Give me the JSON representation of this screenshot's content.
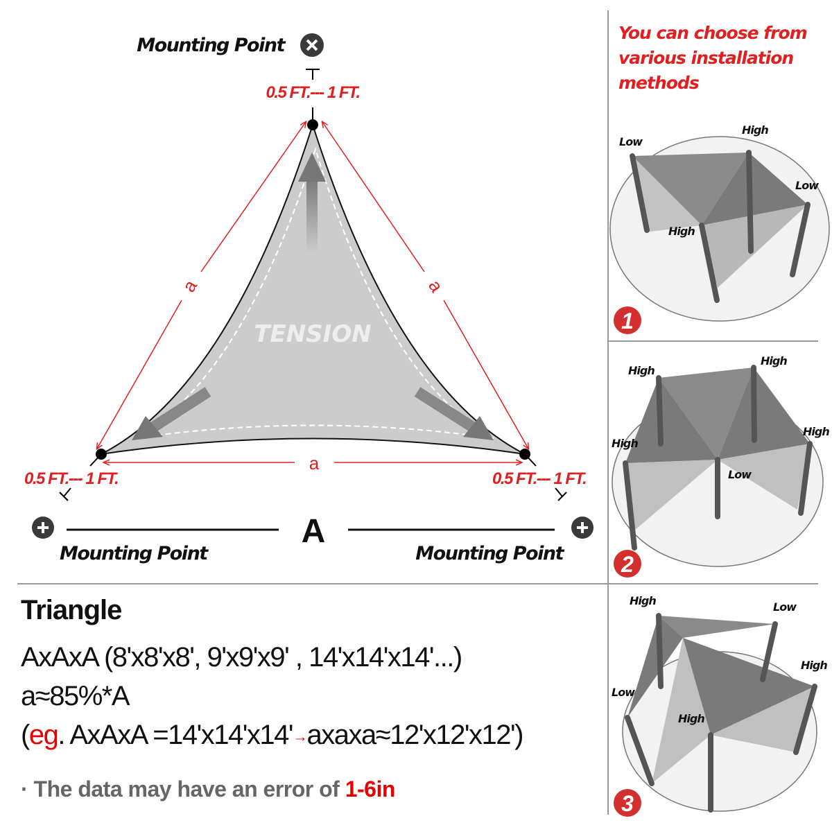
{
  "diagram": {
    "top_mount_label": "Mounting Point",
    "left_mount_label": "Mounting Point",
    "right_mount_label": "Mounting Point",
    "top_mount_icon": "x-circle-icon",
    "side_mount_icon": "plus-circle-icon",
    "offset_top": "0.5 FT.--- 1 FT.",
    "offset_left": "0.5 FT.--- 1 FT.",
    "offset_right": "0.5 FT.--- 1 FT.",
    "side_left": "a",
    "side_right": "a",
    "side_bottom": "a",
    "overall_side": "A",
    "center_text": "TENSION",
    "accent_color": "#e02020",
    "shade_color": "#cccccc"
  },
  "info": {
    "title": "Triangle",
    "sizes": "AxAxA (8'x8'x8', 9'x9'x9' , 14'x14'x14'...)",
    "ratio": "a≈85%*A",
    "example_open": "(",
    "example_eg": "eg",
    "example_mid": ". AxAxA =14'x14'x14'",
    "example_arrow": "→",
    "example_end": "axaxa≈12'x12'x12')",
    "note_prefix": "· The data may have an error of ",
    "note_value": "1-6in"
  },
  "installation": {
    "headline": "You can choose from various installation methods",
    "methods": [
      {
        "number": "1",
        "labels": [
          "Low",
          "High",
          "Low",
          "High"
        ]
      },
      {
        "number": "2",
        "labels": [
          "High",
          "High",
          "High",
          "High",
          "Low"
        ]
      },
      {
        "number": "3",
        "labels": [
          "High",
          "Low",
          "High",
          "Low",
          "High"
        ]
      }
    ]
  }
}
